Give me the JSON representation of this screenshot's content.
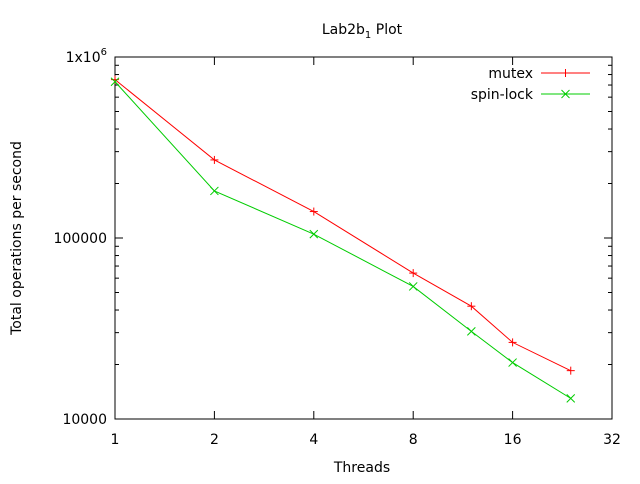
{
  "chart_data": {
    "type": "line",
    "title": "Lab2b",
    "title_subscript": "1",
    "title_suffix": " Plot",
    "xlabel": "Threads",
    "ylabel": "Total operations per second",
    "x_scale": "log2",
    "y_scale": "log10",
    "xlim": [
      1,
      32
    ],
    "ylim": [
      10000,
      1000000
    ],
    "x_ticks": [
      1,
      2,
      4,
      8,
      16,
      32
    ],
    "x_tick_labels": [
      "1",
      "2",
      "4",
      "8",
      "16",
      "32"
    ],
    "y_ticks": [
      10000,
      100000,
      1000000
    ],
    "y_tick_labels": [
      "10000",
      "100000",
      "1x10"
    ],
    "y_top_exponent": "6",
    "grid": false,
    "legend_position": "top-right",
    "series": [
      {
        "name": "mutex",
        "color": "#ff0000",
        "marker": "plus",
        "x": [
          1,
          2,
          4,
          8,
          12,
          16,
          24
        ],
        "y": [
          750000,
          270000,
          140000,
          64000,
          42000,
          26500,
          18500
        ]
      },
      {
        "name": "spin-lock",
        "color": "#00cc00",
        "marker": "cross",
        "x": [
          1,
          2,
          4,
          8,
          12,
          16,
          24
        ],
        "y": [
          730000,
          182000,
          105000,
          54000,
          30500,
          20500,
          13000
        ]
      }
    ]
  }
}
